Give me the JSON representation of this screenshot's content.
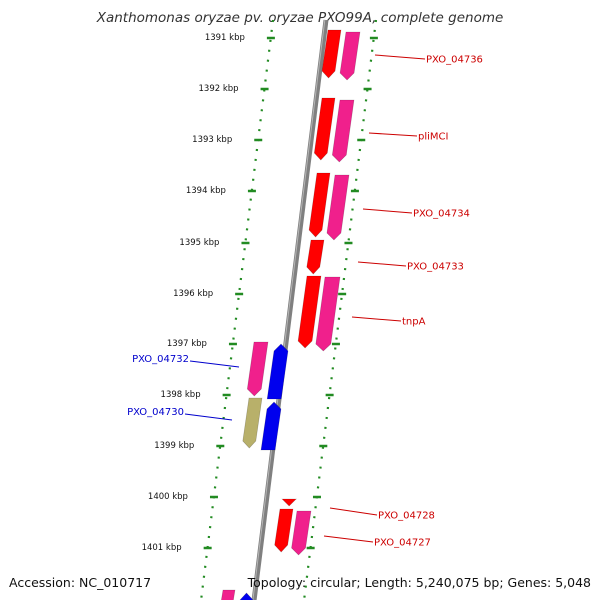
{
  "title": "Xanthomonas oryzae pv. oryzae PXO99A, complete genome",
  "footer": {
    "accession": "Accession: NC_010717",
    "topology": "Topology: circular; Length: 5,240,075 bp; Genes: 5,048"
  },
  "colors": {
    "backbone": "#808080",
    "tick": "#228B22",
    "forward_label": "#CC0000",
    "reverse_label": "#0000CC",
    "red_gene": "#FF0000",
    "pink_gene": "#F0208C",
    "blue_gene": "#0000EE",
    "olive_gene": "#B8B06A"
  },
  "kbp_labels": [
    "1391 kbp",
    "1392 kbp",
    "1393 kbp",
    "1394 kbp",
    "1395 kbp",
    "1396 kbp",
    "1397 kbp",
    "1398 kbp",
    "1399 kbp",
    "1400 kbp",
    "1401 kbp"
  ],
  "gene_labels": [
    {
      "name": "PXO_04736",
      "strand": "forward"
    },
    {
      "name": "pliMCI",
      "strand": "forward"
    },
    {
      "name": "PXO_04734",
      "strand": "forward"
    },
    {
      "name": "PXO_04733",
      "strand": "forward"
    },
    {
      "name": "tnpA",
      "strand": "forward"
    },
    {
      "name": "PXO_04732",
      "strand": "reverse"
    },
    {
      "name": "PXO_04730",
      "strand": "reverse"
    },
    {
      "name": "PXO_04728",
      "strand": "forward"
    },
    {
      "name": "PXO_04727",
      "strand": "forward"
    }
  ]
}
